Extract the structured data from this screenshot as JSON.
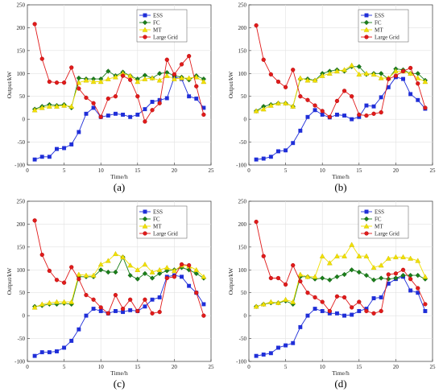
{
  "colors": {
    "ESS": "#1f2ed8",
    "FC": "#1a7f1a",
    "MT": "#f2e000",
    "Large Grid": "#e01b1b"
  },
  "chart_data": [
    {
      "type": "line",
      "caption": "(a)",
      "xlabel": "Time/h",
      "ylabel": "Output/kW",
      "xlim": [
        0,
        25
      ],
      "ylim": [
        -100,
        250
      ],
      "xticks": [
        "0",
        "5",
        "10",
        "15",
        "20",
        "25"
      ],
      "yticks": [
        "-100",
        "-50",
        "0",
        "50",
        "100",
        "150",
        "200",
        "250"
      ],
      "legend_position": "top-right",
      "x": [
        1,
        2,
        3,
        4,
        5,
        6,
        7,
        8,
        9,
        10,
        11,
        12,
        13,
        14,
        15,
        16,
        17,
        18,
        19,
        20,
        21,
        22,
        23,
        24
      ],
      "series": [
        {
          "name": "ESS",
          "marker": "square",
          "values": [
            -88,
            -82,
            -82,
            -65,
            -63,
            -55,
            -28,
            12,
            25,
            5,
            8,
            12,
            10,
            5,
            10,
            22,
            38,
            42,
            46,
            92,
            88,
            50,
            45,
            25
          ]
        },
        {
          "name": "FC",
          "marker": "diamond",
          "values": [
            22,
            28,
            32,
            30,
            32,
            25,
            90,
            88,
            88,
            88,
            105,
            95,
            103,
            95,
            88,
            96,
            90,
            100,
            102,
            95,
            92,
            86,
            95,
            88
          ]
        },
        {
          "name": "MT",
          "marker": "triangle",
          "values": [
            20,
            25,
            28,
            28,
            30,
            28,
            80,
            85,
            82,
            82,
            88,
            92,
            100,
            95,
            82,
            88,
            90,
            85,
            95,
            88,
            90,
            90,
            92,
            82
          ]
        },
        {
          "name": "Large Grid",
          "marker": "circle",
          "values": [
            208,
            132,
            82,
            80,
            80,
            113,
            67,
            47,
            35,
            5,
            45,
            50,
            95,
            86,
            50,
            -5,
            20,
            35,
            130,
            98,
            120,
            138,
            72,
            10
          ]
        }
      ]
    },
    {
      "type": "line",
      "caption": "(b)",
      "xlabel": "Time/h",
      "ylabel": "Output/kW",
      "xlim": [
        0,
        25
      ],
      "ylim": [
        -100,
        250
      ],
      "xticks": [
        "0",
        "5",
        "10",
        "15",
        "20",
        "25"
      ],
      "yticks": [
        "-100",
        "-50",
        "0",
        "50",
        "100",
        "150",
        "200",
        "250"
      ],
      "legend_position": "top-right",
      "x": [
        1,
        2,
        3,
        4,
        5,
        6,
        7,
        8,
        9,
        10,
        11,
        12,
        13,
        14,
        15,
        16,
        17,
        18,
        19,
        20,
        21,
        22,
        23,
        24
      ],
      "series": [
        {
          "name": "ESS",
          "marker": "square",
          "values": [
            -88,
            -86,
            -82,
            -70,
            -68,
            -52,
            -25,
            5,
            20,
            10,
            4,
            10,
            8,
            0,
            5,
            30,
            28,
            48,
            70,
            92,
            88,
            55,
            42,
            23
          ]
        },
        {
          "name": "FC",
          "marker": "diamond",
          "values": [
            18,
            28,
            32,
            35,
            35,
            28,
            88,
            88,
            85,
            100,
            105,
            108,
            105,
            115,
            115,
            98,
            100,
            100,
            88,
            110,
            108,
            100,
            100,
            85
          ]
        },
        {
          "name": "MT",
          "marker": "triangle",
          "values": [
            18,
            22,
            30,
            35,
            35,
            28,
            90,
            85,
            85,
            95,
            100,
            105,
            108,
            118,
            98,
            100,
            98,
            90,
            90,
            105,
            105,
            100,
            90,
            82
          ]
        },
        {
          "name": "Large Grid",
          "marker": "circle",
          "values": [
            205,
            130,
            98,
            82,
            70,
            108,
            50,
            42,
            30,
            18,
            5,
            40,
            62,
            50,
            10,
            8,
            12,
            15,
            88,
            95,
            105,
            112,
            78,
            25
          ]
        }
      ]
    },
    {
      "type": "line",
      "caption": "(c)",
      "xlabel": "Time/h",
      "ylabel": "Output/kW",
      "xlim": [
        0,
        25
      ],
      "ylim": [
        -100,
        250
      ],
      "xticks": [
        "0",
        "5",
        "10",
        "15",
        "20",
        "25"
      ],
      "yticks": [
        "-100",
        "-50",
        "0",
        "50",
        "100",
        "150",
        "200",
        "250"
      ],
      "legend_position": "top-right",
      "x": [
        1,
        2,
        3,
        4,
        5,
        6,
        7,
        8,
        9,
        10,
        11,
        12,
        13,
        14,
        15,
        16,
        17,
        18,
        19,
        20,
        21,
        22,
        23,
        24
      ],
      "series": [
        {
          "name": "ESS",
          "marker": "square",
          "values": [
            -88,
            -80,
            -80,
            -78,
            -70,
            -55,
            -30,
            0,
            15,
            10,
            5,
            10,
            8,
            12,
            10,
            20,
            35,
            40,
            85,
            88,
            85,
            65,
            50,
            25
          ]
        },
        {
          "name": "FC",
          "marker": "diamond",
          "values": [
            20,
            22,
            25,
            25,
            27,
            25,
            85,
            85,
            85,
            100,
            95,
            95,
            128,
            88,
            80,
            92,
            82,
            92,
            98,
            100,
            105,
            100,
            92,
            82
          ]
        },
        {
          "name": "MT",
          "marker": "triangle",
          "values": [
            18,
            25,
            28,
            30,
            30,
            30,
            90,
            88,
            88,
            112,
            120,
            135,
            128,
            110,
            100,
            112,
            95,
            100,
            105,
            98,
            110,
            108,
            100,
            85
          ]
        },
        {
          "name": "Large Grid",
          "marker": "circle",
          "values": [
            208,
            133,
            98,
            78,
            72,
            106,
            80,
            45,
            35,
            18,
            5,
            45,
            15,
            35,
            10,
            35,
            5,
            8,
            82,
            85,
            112,
            110,
            50,
            0
          ]
        }
      ]
    },
    {
      "type": "line",
      "caption": "(d)",
      "xlabel": "Time/h",
      "ylabel": "Output/kW",
      "xlim": [
        0,
        25
      ],
      "ylim": [
        -100,
        250
      ],
      "xticks": [
        "0",
        "5",
        "10",
        "15",
        "20",
        "25"
      ],
      "yticks": [
        "-100",
        "-50",
        "0",
        "50",
        "100",
        "150",
        "200",
        "250"
      ],
      "legend_position": "top-right",
      "x": [
        1,
        2,
        3,
        4,
        5,
        6,
        7,
        8,
        9,
        10,
        11,
        12,
        13,
        14,
        15,
        16,
        17,
        18,
        19,
        20,
        21,
        22,
        23,
        24
      ],
      "series": [
        {
          "name": "ESS",
          "marker": "square",
          "values": [
            -88,
            -85,
            -82,
            -70,
            -65,
            -60,
            -25,
            0,
            15,
            10,
            5,
            5,
            0,
            2,
            10,
            15,
            38,
            40,
            70,
            80,
            85,
            55,
            50,
            10
          ]
        },
        {
          "name": "FC",
          "marker": "diamond",
          "values": [
            20,
            25,
            28,
            28,
            32,
            25,
            85,
            85,
            80,
            82,
            78,
            85,
            90,
            100,
            95,
            88,
            78,
            82,
            80,
            82,
            88,
            88,
            88,
            80
          ]
        },
        {
          "name": "MT",
          "marker": "triangle",
          "values": [
            20,
            25,
            30,
            28,
            35,
            30,
            90,
            85,
            85,
            130,
            115,
            130,
            130,
            155,
            130,
            130,
            105,
            110,
            125,
            128,
            128,
            125,
            120,
            85
          ]
        },
        {
          "name": "Large Grid",
          "marker": "circle",
          "values": [
            205,
            130,
            82,
            82,
            68,
            110,
            75,
            50,
            40,
            30,
            10,
            42,
            40,
            18,
            30,
            10,
            5,
            10,
            90,
            92,
            100,
            80,
            60,
            25
          ]
        }
      ]
    }
  ]
}
